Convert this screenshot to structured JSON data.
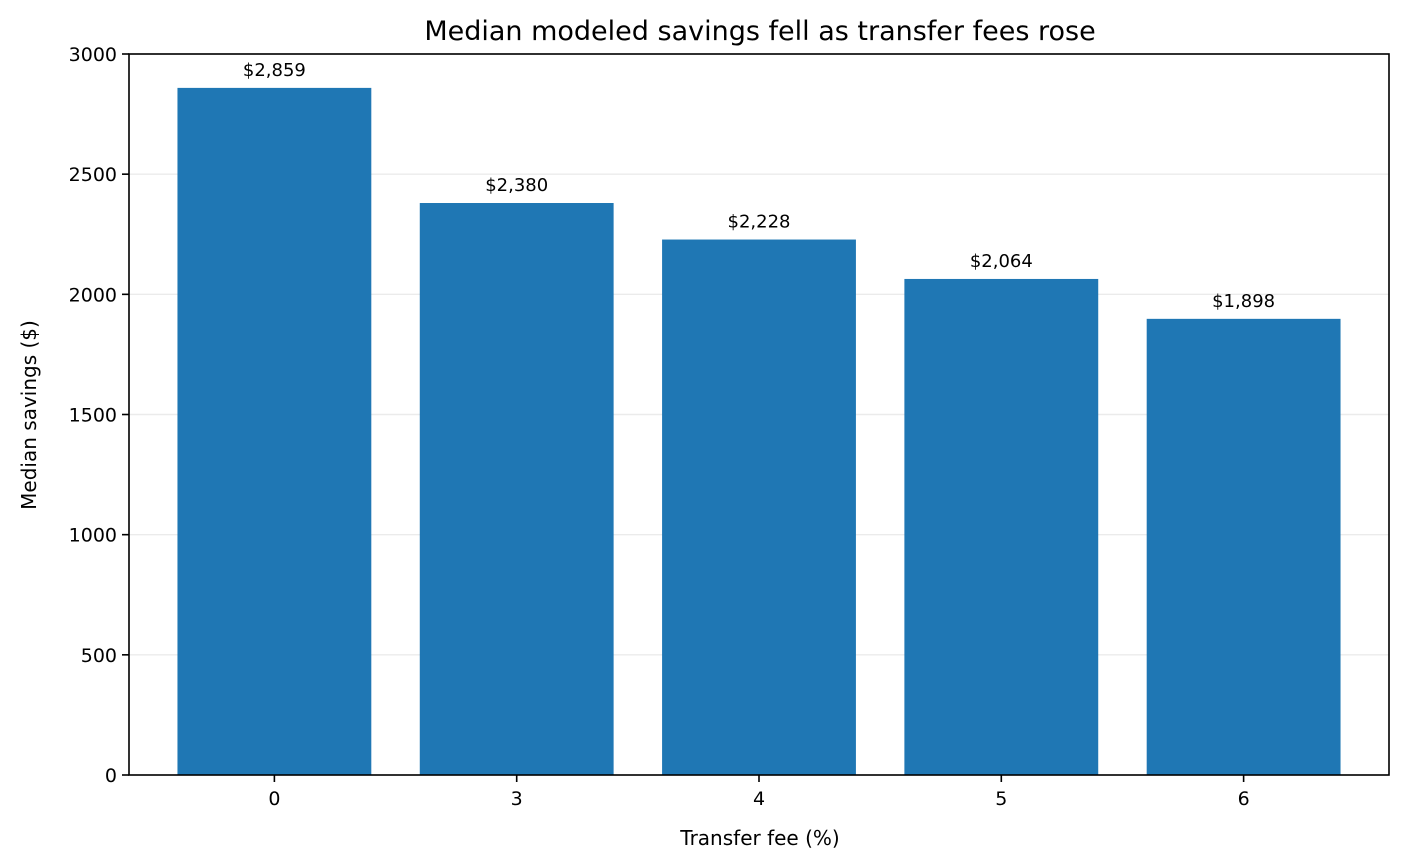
{
  "chart_data": {
    "type": "bar",
    "title": "Median modeled savings fell as transfer fees rose",
    "xlabel": "Transfer fee (%)",
    "ylabel": "Median savings ($)",
    "categories": [
      "0",
      "3",
      "4",
      "5",
      "6"
    ],
    "values": [
      2859,
      2380,
      2228,
      2064,
      1898
    ],
    "data_labels": [
      "$2,859",
      "$2,380",
      "$2,228",
      "$2,064",
      "$1,898"
    ],
    "ylim": [
      0,
      3000
    ],
    "yticks": [
      0,
      500,
      1000,
      1500,
      2000,
      2500,
      3000
    ],
    "ytick_labels": [
      "0",
      "500",
      "1000",
      "1500",
      "2000",
      "2500",
      "3000"
    ],
    "grid": "horizontal",
    "bar_color": "#1f77b4",
    "grid_color": "#ebebeb"
  }
}
